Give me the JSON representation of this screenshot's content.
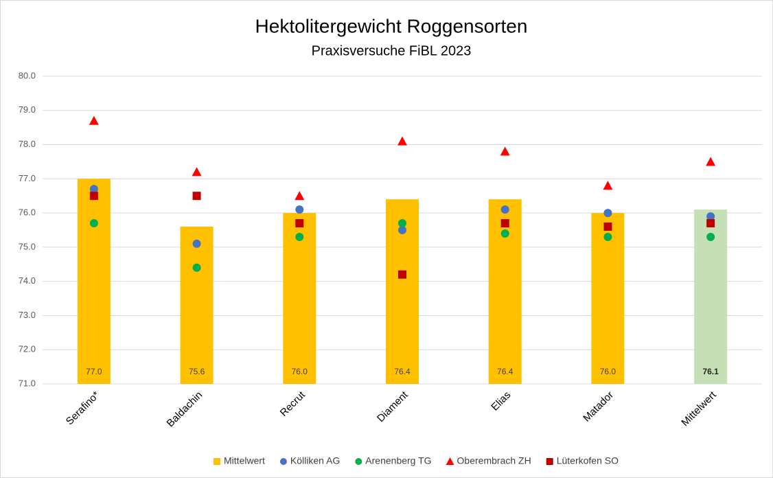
{
  "chart_data": {
    "type": "bar",
    "title": "Hektolitergewicht Roggensorten",
    "subtitle": "Praxisversuche FiBL 2023",
    "categories": [
      "Serafino*",
      "Baldachin",
      "Recrut",
      "Diament",
      "Elias",
      "Matador",
      "Mittelwert"
    ],
    "series": [
      {
        "name": "Mittelwert",
        "type": "bar",
        "color": "#ffc000",
        "colors": [
          "#ffc000",
          "#ffc000",
          "#ffc000",
          "#ffc000",
          "#ffc000",
          "#ffc000",
          "#c5e0b4"
        ],
        "values": [
          77.0,
          75.6,
          76.0,
          76.4,
          76.4,
          76.0,
          76.1
        ],
        "value_labels": [
          "77.0",
          "75.6",
          "76.0",
          "76.4",
          "76.4",
          "76.0",
          "76.1"
        ]
      },
      {
        "name": "Kölliken AG",
        "type": "scatter",
        "marker": "circle",
        "color": "#4472c4",
        "values": [
          76.7,
          75.1,
          76.1,
          75.5,
          76.1,
          76.0,
          75.9
        ]
      },
      {
        "name": "Arenenberg TG",
        "type": "scatter",
        "marker": "circle",
        "color": "#00b050",
        "values": [
          75.7,
          74.4,
          75.3,
          75.7,
          75.4,
          75.3,
          75.3
        ]
      },
      {
        "name": "Oberembrach ZH",
        "type": "scatter",
        "marker": "triangle",
        "color": "#ff0000",
        "values": [
          78.7,
          77.2,
          76.5,
          78.1,
          77.8,
          76.8,
          77.5
        ]
      },
      {
        "name": "Lüterkofen SO",
        "type": "scatter",
        "marker": "square",
        "color": "#c00000",
        "values": [
          76.5,
          76.5,
          75.7,
          74.2,
          75.7,
          75.6,
          75.7
        ]
      }
    ],
    "ylim": [
      71,
      80
    ],
    "yticks": [
      {
        "value": 71,
        "label": "71.0"
      },
      {
        "value": 72,
        "label": "72.0"
      },
      {
        "value": 73,
        "label": "73.0"
      },
      {
        "value": 74,
        "label": "74.0"
      },
      {
        "value": 75,
        "label": "75.0"
      },
      {
        "value": 76,
        "label": "76.0"
      },
      {
        "value": 77,
        "label": "77.0"
      },
      {
        "value": 78,
        "label": "78.0"
      },
      {
        "value": 79,
        "label": "79.0"
      },
      {
        "value": 80,
        "label": "80.0"
      }
    ],
    "grid": true,
    "legend": "bottom"
  }
}
